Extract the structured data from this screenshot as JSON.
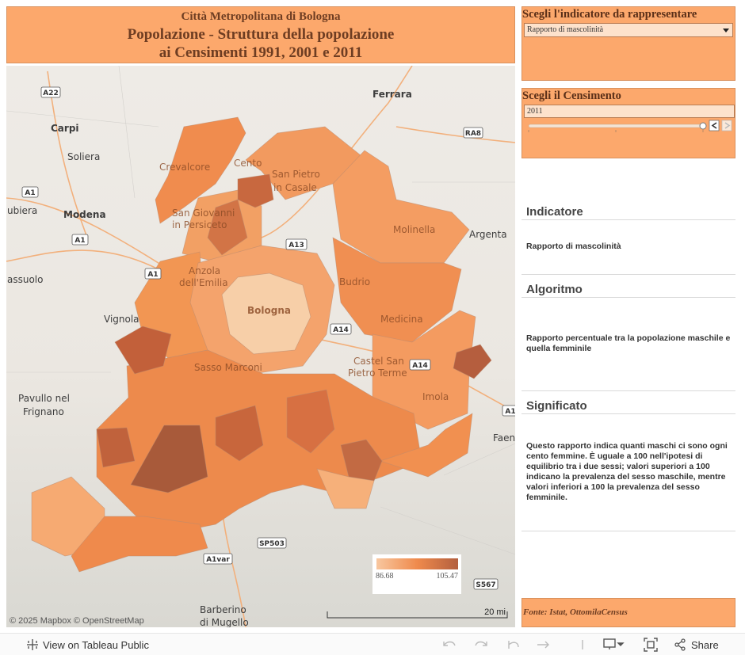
{
  "header": {
    "line1": "Città Metropolitana di Bologna",
    "line2": "Popolazione - Struttura della popolazione",
    "line3": "ai Censimenti 1991, 2001 e 2011"
  },
  "indicator_selector": {
    "title": "Scegli l'indicatore da rappresentare",
    "value": "Rapporto di mascolinità"
  },
  "census_selector": {
    "title": "Scegli il Censimento",
    "value": "2011"
  },
  "sections": [
    {
      "heading": "Indicatore",
      "text": "Rapporto di mascolinità"
    },
    {
      "heading": "Algoritmo",
      "text": "Rapporto percentuale tra la popolazione maschile e quella femminile"
    },
    {
      "heading": "Significato",
      "text": "Questo rapporto indica quanti maschi ci sono ogni cento femmine. È uguale a 100 nell'ipotesi di equilibrio tra i due sessi; valori superiori a 100 indicano la prevalenza del sesso maschile, mentre valori inferiori a 100 la prevalenza del sesso femminile."
    }
  ],
  "source": "Fonte: Istat, OttomilaCensus",
  "map": {
    "places": [
      "Ferrara",
      "Carpi",
      "Soliera",
      "Crevalcore",
      "Cento",
      "San Pietro",
      "in Casale",
      "ubiera",
      "Modena",
      "San Giovanni",
      "in Persiceto",
      "Molinella",
      "Argenta",
      "Anzola",
      "dell'Emilia",
      "assuolo",
      "Bologna",
      "Budrio",
      "Vignola",
      "Medicina",
      "Castel San",
      "Pietro Terme",
      "Sasso Marconi",
      "Imola",
      "Pavullo nel",
      "Frignano",
      "Faen",
      "Barberino",
      "di Mugello"
    ],
    "roads": [
      "A22",
      "RA8",
      "A1",
      "A1",
      "A1",
      "A13",
      "A14",
      "A14",
      "A1",
      "SP503",
      "A1var",
      "S567"
    ],
    "legend": {
      "min": 86.68,
      "max": 105.47
    },
    "attribution": "© 2025 Mapbox © OpenStreetMap",
    "scale": "20 mi"
  },
  "toolbar": {
    "view": "View on Tableau Public",
    "share": "Share"
  }
}
